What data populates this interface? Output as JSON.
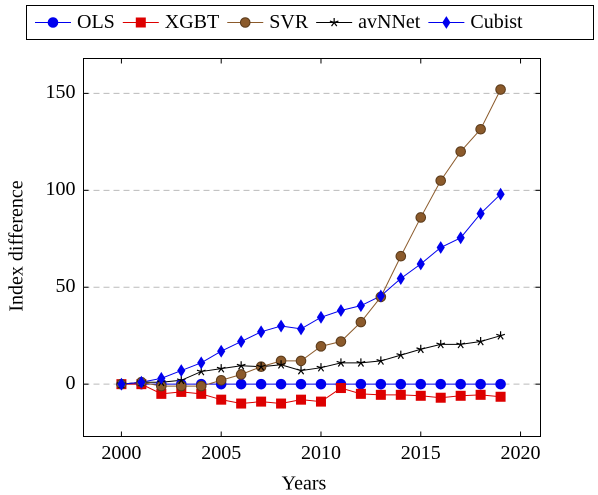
{
  "chart_data": {
    "type": "line",
    "x_label": "Years",
    "y_label": "Index difference",
    "x": [
      2000,
      2001,
      2002,
      2003,
      2004,
      2005,
      2006,
      2007,
      2008,
      2009,
      2010,
      2011,
      2012,
      2013,
      2014,
      2015,
      2016,
      2017,
      2018,
      2019
    ],
    "xlim": [
      1998.1,
      2021
    ],
    "xticks": [
      2000,
      2005,
      2010,
      2015,
      2020
    ],
    "ylim": [
      -27,
      168
    ],
    "yticks": [
      0,
      50,
      100,
      150
    ],
    "grid": true,
    "legend": "top",
    "series": [
      {
        "name": "OLS",
        "color": "#0000ee",
        "marker": "circle",
        "line_color": "#0000ee",
        "values": [
          0,
          0,
          0,
          0,
          0,
          0,
          0,
          0,
          0,
          0,
          0,
          0,
          0,
          0,
          0,
          0,
          0,
          0,
          0,
          0
        ]
      },
      {
        "name": "XGBT",
        "color": "#dd0000",
        "marker": "square",
        "line_color": "#dd0000",
        "values": [
          0,
          0,
          -5,
          -4,
          -5,
          -8,
          -10,
          -9,
          -10,
          -8,
          -9,
          -2,
          -5,
          -5.5,
          -5.5,
          -6,
          -7,
          -6,
          -5.5,
          -6.5
        ]
      },
      {
        "name": "SVR",
        "color": "#8b5a2b",
        "marker": "circle",
        "line_color": "#8b5a2b",
        "values": [
          0,
          1,
          -1,
          -1,
          -1,
          2,
          5,
          9,
          12,
          12,
          19.5,
          22,
          32,
          45,
          66,
          86,
          105,
          120,
          131.5,
          152
        ]
      },
      {
        "name": "avNNet",
        "color": "#000000",
        "marker": "star",
        "line_color": "#000000",
        "values": [
          0,
          1,
          1,
          2,
          6.5,
          8,
          9.5,
          9,
          10,
          7,
          8.5,
          11,
          11,
          12,
          15,
          18,
          20.5,
          20.5,
          22,
          25
        ]
      },
      {
        "name": "Cubist",
        "color": "#0000ee",
        "marker": "diamond",
        "line_color": "#0000ee",
        "values": [
          0,
          1,
          3,
          7,
          11,
          17,
          22,
          27,
          30,
          28.5,
          34.5,
          38,
          40.5,
          45.5,
          54.5,
          62,
          70.5,
          75.5,
          88,
          98
        ]
      }
    ]
  }
}
